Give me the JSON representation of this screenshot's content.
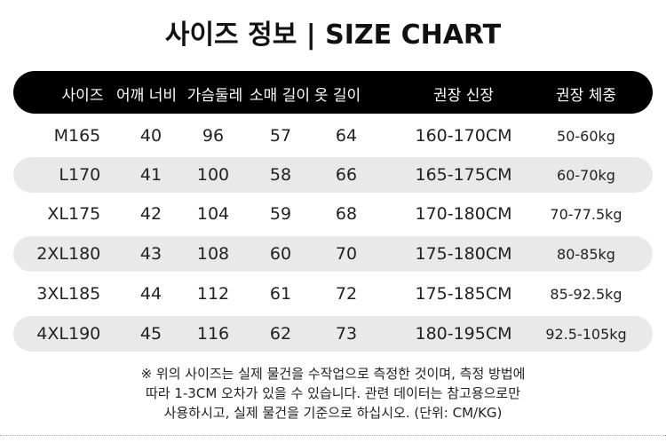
{
  "title": "사이즈 정보 | SIZE CHART",
  "headers": [
    "사이즈",
    "어깨 너비",
    "가슴둘레",
    "소매 길이",
    "옷 길이",
    "권장 신장",
    "권장 체중"
  ],
  "rows": [
    {
      "size": "M",
      "num": "165",
      "shoulder": "40",
      "chest": "96",
      "sleeve": "57",
      "length": "64",
      "height": "160-170CM",
      "weight": "50-60kg"
    },
    {
      "size": "L",
      "num": "170",
      "shoulder": "41",
      "chest": "100",
      "sleeve": "58",
      "length": "66",
      "height": "165-175CM",
      "weight": "60-70kg"
    },
    {
      "size": "XL",
      "num": "175",
      "shoulder": "42",
      "chest": "104",
      "sleeve": "59",
      "length": "68",
      "height": "170-180CM",
      "weight": "70-77.5kg"
    },
    {
      "size": "2XL",
      "num": "180",
      "shoulder": "43",
      "chest": "108",
      "sleeve": "60",
      "length": "70",
      "height": "175-180CM",
      "weight": "80-85kg"
    },
    {
      "size": "3XL",
      "num": "185",
      "shoulder": "44",
      "chest": "112",
      "sleeve": "61",
      "length": "72",
      "height": "175-185CM",
      "weight": "85-92.5kg"
    },
    {
      "size": "4XL",
      "num": "190",
      "shoulder": "45",
      "chest": "116",
      "sleeve": "62",
      "length": "73",
      "height": "180-195CM",
      "weight": "92.5-105kg"
    }
  ],
  "note": [
    "※ 위의 사이즈는 실제 물건을 수작업으로 측정한 것이며, 측정 방법에",
    "따라 1-3CM 오차가 있을 수 있습니다. 관련 데이터는 참고용으로만",
    "사용하시고, 실제 물건을 기준으로 하십시오. (단위: CM/KG)"
  ]
}
